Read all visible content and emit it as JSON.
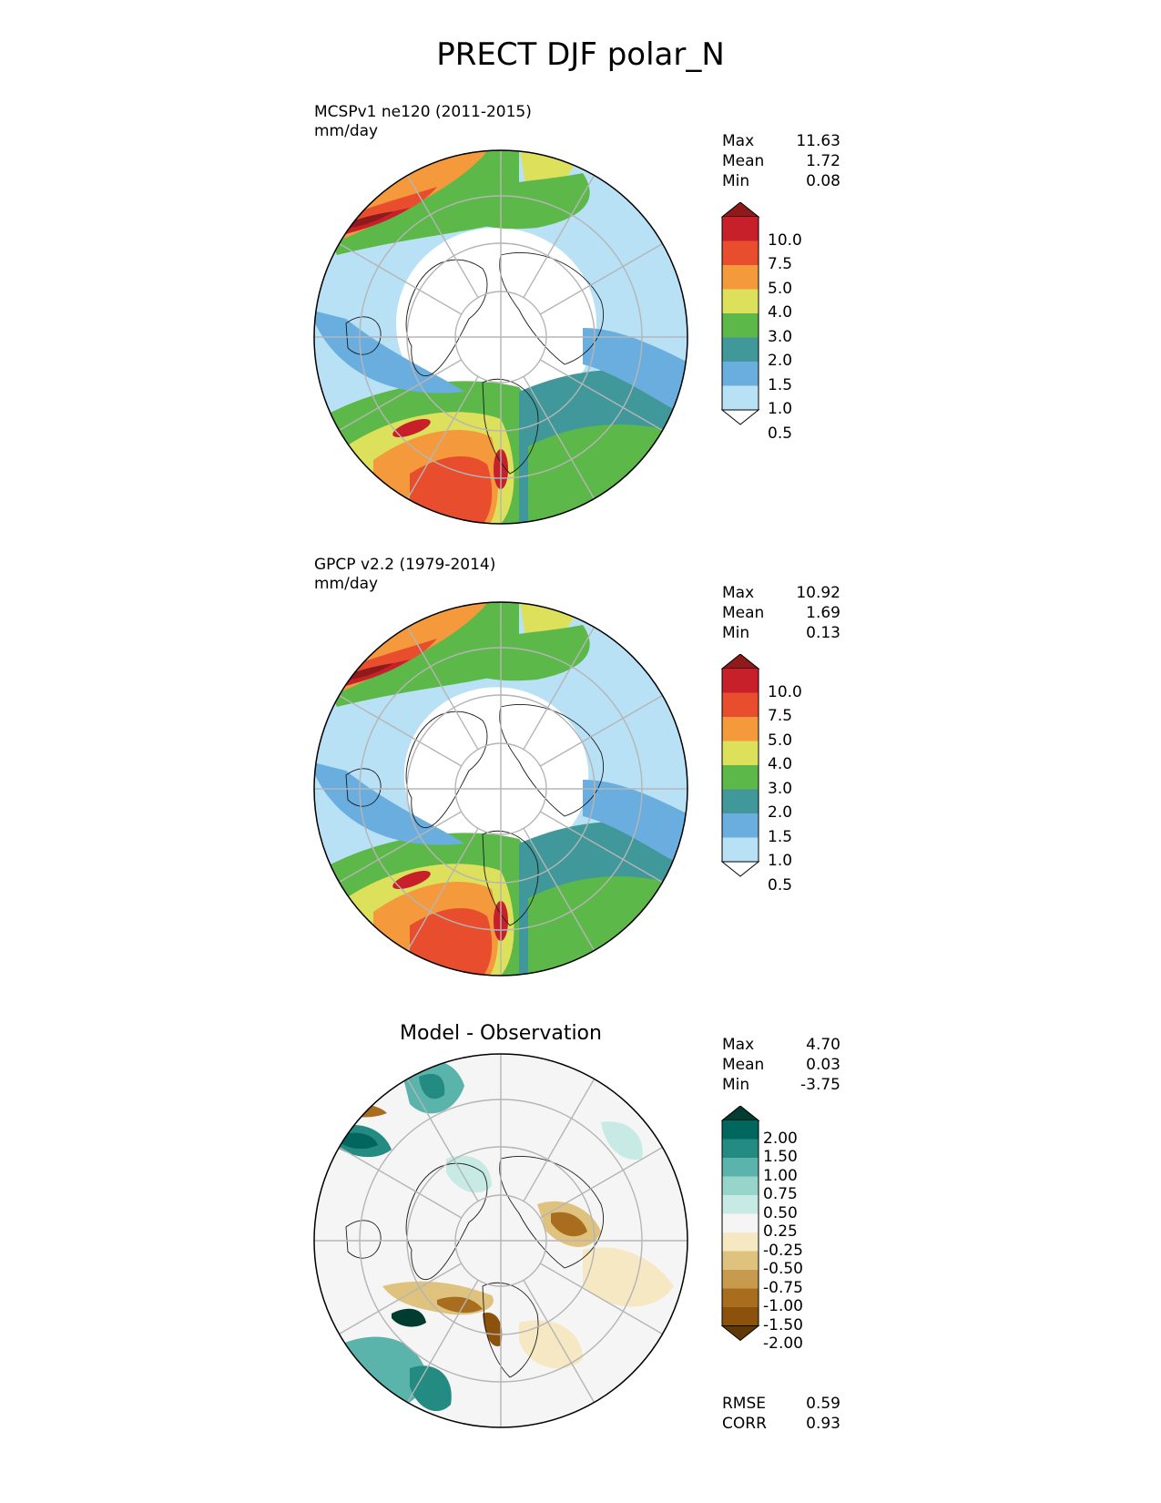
{
  "figure": {
    "title": "PRECT DJF polar_N"
  },
  "panels": [
    {
      "id": "model",
      "title_line1": "MCSPv1 ne120 (2011-2015)",
      "title_line2": "mm/day",
      "center_title": "",
      "stats": [
        {
          "label": "Max",
          "value": "11.63"
        },
        {
          "label": "Mean",
          "value": "1.72"
        },
        {
          "label": "Min",
          "value": "0.08"
        }
      ]
    },
    {
      "id": "obs",
      "title_line1": "GPCP v2.2 (1979-2014)",
      "title_line2": "mm/day",
      "center_title": "",
      "stats": [
        {
          "label": "Max",
          "value": "10.92"
        },
        {
          "label": "Mean",
          "value": "1.69"
        },
        {
          "label": "Min",
          "value": "0.13"
        }
      ]
    },
    {
      "id": "diff",
      "title_line1": "",
      "title_line2": "",
      "center_title": "Model - Observation",
      "stats": [
        {
          "label": "Max",
          "value": "4.70"
        },
        {
          "label": "Mean",
          "value": "0.03"
        },
        {
          "label": "Min",
          "value": "-3.75"
        }
      ],
      "metrics": [
        {
          "label": "RMSE",
          "value": "0.59"
        },
        {
          "label": "CORR",
          "value": "0.93"
        }
      ]
    }
  ],
  "colorbars": {
    "precip": {
      "labels": [
        "10.0",
        "7.5",
        "5.0",
        "4.0",
        "3.0",
        "2.0",
        "1.5",
        "1.0",
        "0.5"
      ],
      "colors_top_to_bottom": [
        "#8f1a1b",
        "#c8202a",
        "#e84d2d",
        "#f49a3c",
        "#dde05a",
        "#5cb849",
        "#41989a",
        "#6aaee0",
        "#b8e1f6",
        "#ffffff"
      ]
    },
    "diff": {
      "labels": [
        "2.00",
        "1.50",
        "1.00",
        "0.75",
        "0.50",
        "0.25",
        "-0.25",
        "-0.50",
        "-0.75",
        "-1.00",
        "-1.50",
        "-2.00"
      ],
      "colors_top_to_bottom": [
        "#003c30",
        "#01665e",
        "#238b82",
        "#5ab4ac",
        "#97d5cb",
        "#c7eae5",
        "#f5f5f5",
        "#f6e8c3",
        "#dfc27d",
        "#c79a4e",
        "#a86d1f",
        "#8c510a",
        "#5e3806"
      ]
    }
  }
}
